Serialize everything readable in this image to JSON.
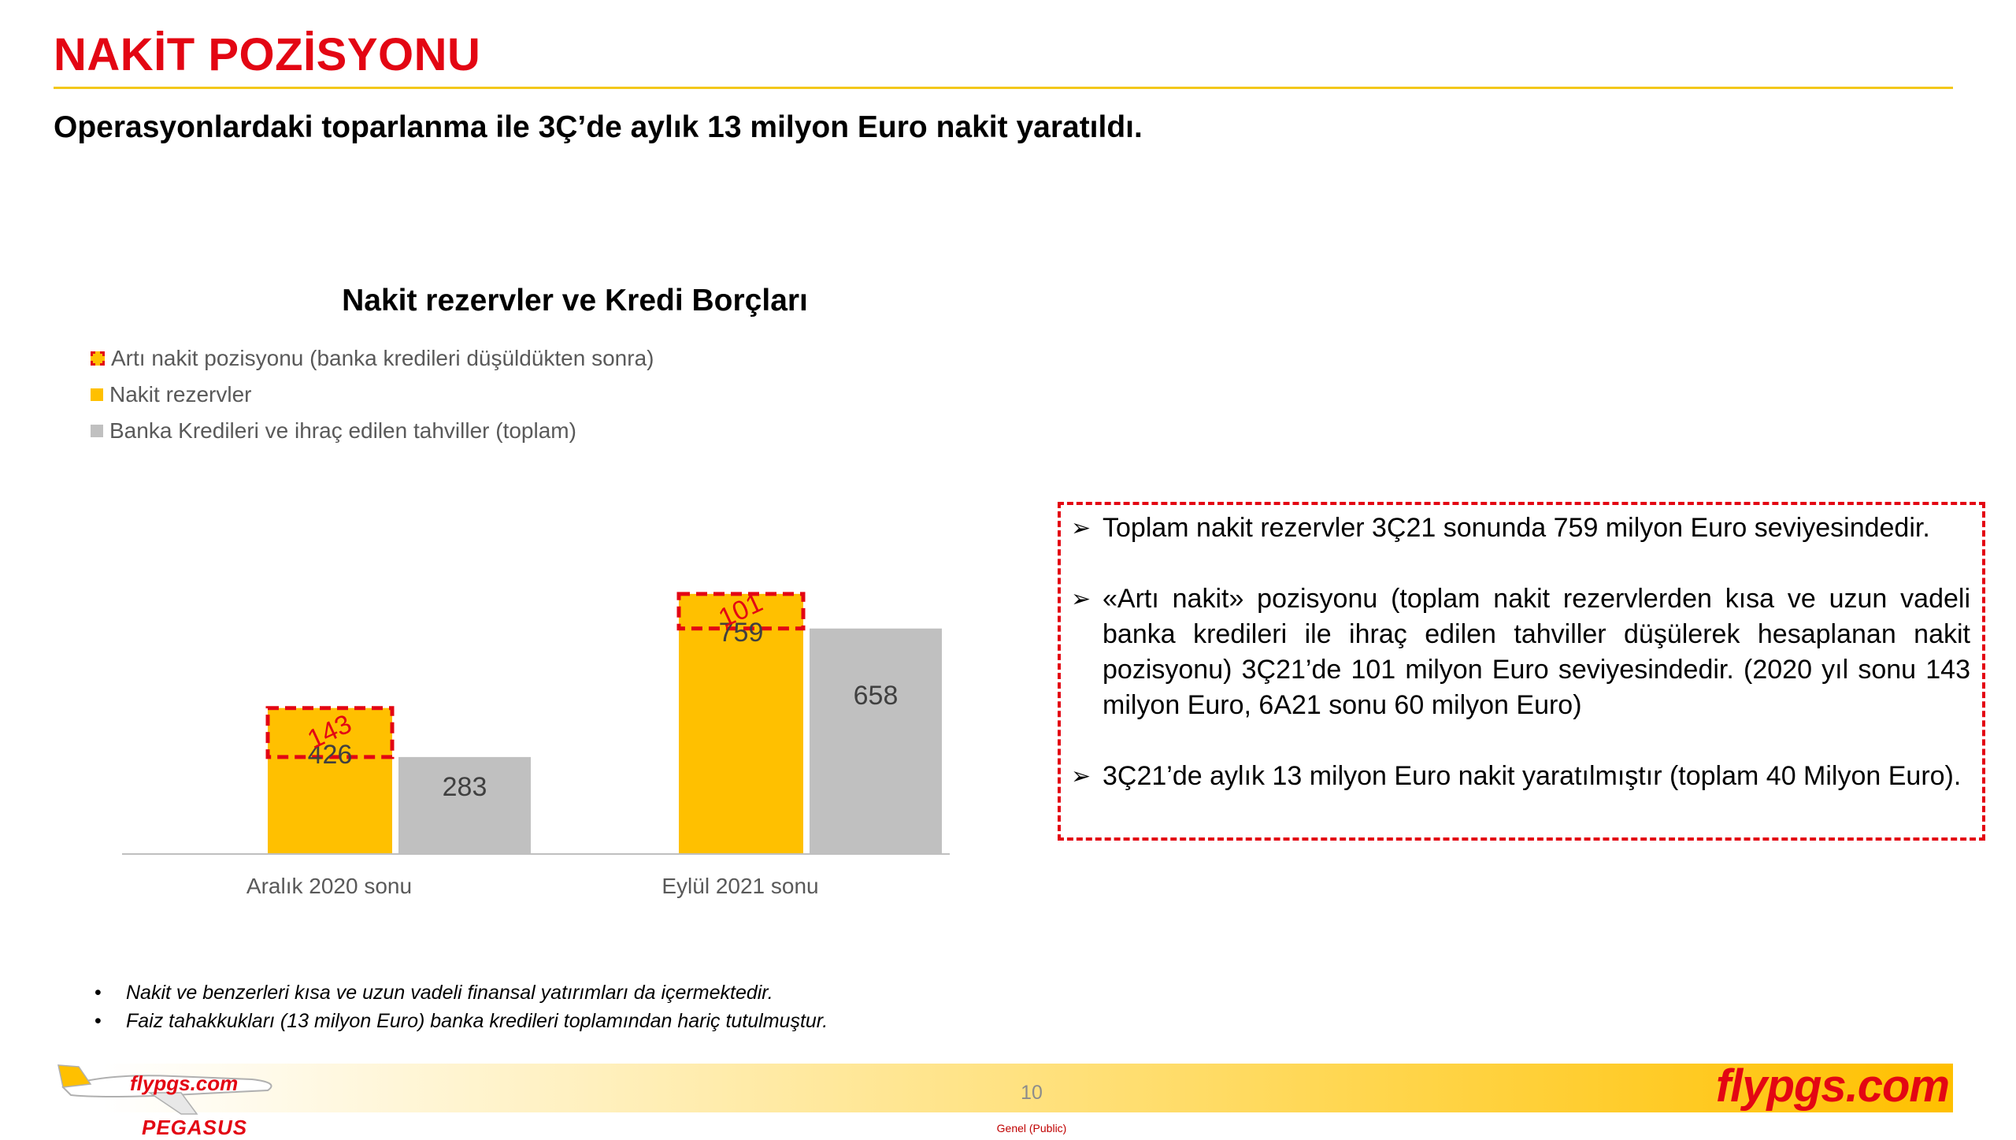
{
  "header": {
    "title": "NAKİT POZİSYONU",
    "subtitle": "Operasyonlardaki toparlanma ile 3Ç’de aylık 13 milyon Euro nakit yaratıldı."
  },
  "chart_data": {
    "type": "bar",
    "title": "Nakit rezervler ve Kredi Borçları",
    "categories": [
      "Aralık 2020 sonu",
      "Eylül 2021 sonu"
    ],
    "series": [
      {
        "name": "Artı nakit pozisyonu (banka kredileri düşüldükten sonra)",
        "values": [
          143,
          101
        ],
        "color": "#e30613",
        "style": "dashed-outline"
      },
      {
        "name": "Nakit rezervler",
        "values": [
          426,
          759
        ],
        "color": "#ffc000"
      },
      {
        "name": "Banka Kredileri ve ihraç edilen tahviller (toplam)",
        "values": [
          283,
          658
        ],
        "color": "#c0c0c0"
      }
    ],
    "legend_position": "top-left",
    "grid": false,
    "ylim": [
      0,
      860
    ]
  },
  "callout": {
    "bullets": [
      "Toplam nakit rezervler 3Ç21 sonunda 759 milyon Euro seviyesindedir.",
      "«Artı nakit» pozisyonu (toplam nakit rezervlerden kısa ve uzun vadeli banka kredileri ile ihraç edilen tahviller düşülerek hesaplanan nakit pozisyonu) 3Ç21’de 101 milyon Euro seviyesindedir. (2020 yıl sonu 143 milyon Euro, 6A21 sonu 60 milyon Euro)",
      "3Ç21’de aylık 13 milyon Euro nakit yaratılmıştır (toplam 40 Milyon Euro)."
    ],
    "bullet_glyph": "➢"
  },
  "footnotes": [
    "Nakit ve benzerleri kısa ve uzun vadeli finansal yatırımları da içermektedir.",
    "Faiz tahakkukları (13 milyon Euro) banka kredileri toplamından hariç tutulmuştur."
  ],
  "footnote_glyph": "•",
  "footer": {
    "page_number": "10",
    "brand": "flypgs.com",
    "plane_livery": "flypgs.com",
    "company": "PEGASUS",
    "classification": "Genel (Public)"
  },
  "colors": {
    "accent_red": "#e30613",
    "yellow": "#ffc000",
    "grey": "#c0c0c0",
    "rule": "#f3c81b"
  }
}
